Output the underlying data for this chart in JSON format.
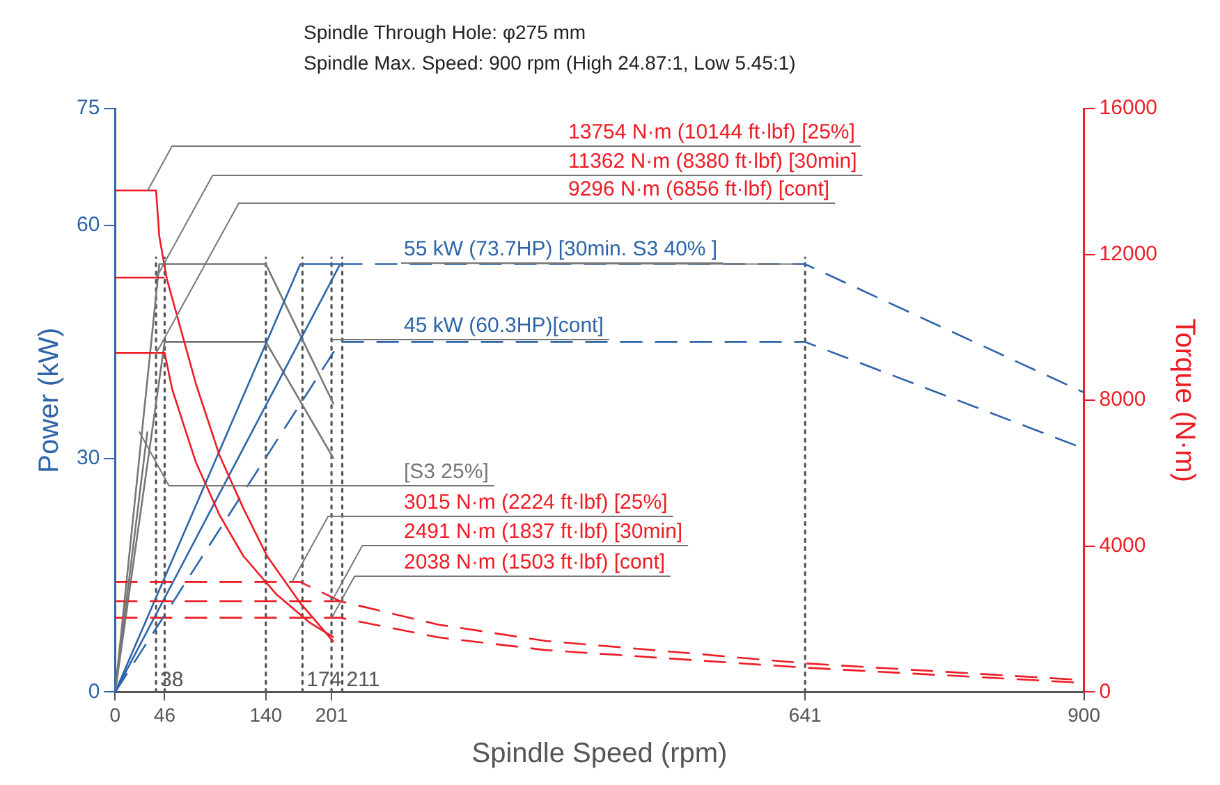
{
  "chart_data": {
    "type": "line",
    "subtitle": "Spindle Through Hole: φ275 mm",
    "annotations": [
      "Spindle Max. Speed: 900 rpm (High 24.87:1, Low 5.45:1)"
    ],
    "xlabel": "Spindle Speed (rpm)",
    "ylabel": "Power (kW)",
    "y2label": "Torque (N·m)",
    "xlim": [
      0,
      900
    ],
    "xticks": [
      0,
      46,
      140,
      201,
      641,
      900
    ],
    "ylim": [
      0,
      75
    ],
    "yticks": [
      0,
      30,
      60,
      75
    ],
    "y2lim": [
      0,
      16000
    ],
    "y2ticks": [
      0,
      4000,
      8000,
      12000,
      16000
    ],
    "grid": false,
    "legend": false,
    "marker": "none",
    "ref_lines": [
      {
        "axis": "x",
        "value": 38,
        "label": "38",
        "line_style": "dotted",
        "color": "#555555"
      },
      {
        "axis": "x",
        "value": 46,
        "label": null,
        "line_style": "dotted",
        "color": "#555555"
      },
      {
        "axis": "x",
        "value": 140,
        "label": null,
        "line_style": "dotted",
        "color": "#555555"
      },
      {
        "axis": "x",
        "value": 174,
        "label": "174",
        "line_style": "dotted",
        "color": "#555555"
      },
      {
        "axis": "x",
        "value": 201,
        "label": null,
        "line_style": "dotted",
        "color": "#555555"
      },
      {
        "axis": "x",
        "value": 211,
        "label": "211",
        "line_style": "dotted",
        "color": "#555555"
      },
      {
        "axis": "x",
        "value": 641,
        "label": null,
        "line_style": "dotted",
        "color": "#555555"
      }
    ],
    "series": [
      {
        "name": "13754 N·m (10144 ft·lbf) [25%]",
        "color": "#ee1c25",
        "axis": "y2",
        "line_style": "solid",
        "x": [
          0,
          38,
          41,
          48,
          75,
          97,
          119,
          141,
          172,
          203
        ],
        "values": [
          13754,
          13754,
          12500,
          11333,
          8452,
          6486,
          5044,
          3734,
          2437,
          1376
        ]
      },
      {
        "name": "11362 N·m (8380 ft·lbf) [30min]",
        "color": "#ee1c25",
        "axis": "y2",
        "line_style": "solid",
        "x": [
          0,
          46
        ],
        "values": [
          11362,
          11362
        ]
      },
      {
        "name": "9296 N·m (6856 ft·lbf) [cont]",
        "color": "#ee1c25",
        "axis": "y2",
        "line_style": "solid",
        "x": [
          0,
          46,
          53,
          75,
          97,
          119,
          150,
          181,
          203
        ],
        "values": [
          9296,
          9296,
          8300,
          6300,
          4850,
          3734,
          2673,
          1899,
          1500
        ]
      },
      {
        "name": "55 kW (73.7HP) [30min. S3 40% ]",
        "color": "#2e64a8",
        "axis": "y",
        "line_style": "dashed",
        "x": [
          209,
          641,
          900
        ],
        "values": [
          55,
          55,
          38.5
        ]
      },
      {
        "name": "45 kW (60.3HP)[cont]",
        "color": "#2e64a8",
        "axis": "y",
        "line_style": "dashed",
        "x": [
          0,
          209,
          641,
          900
        ],
        "values": [
          0,
          45,
          45,
          31.3
        ]
      },
      {
        "name": "[S3 25%]",
        "color": "#777777",
        "axis": "y",
        "line_style": "solid",
        "x": [
          0,
          30
        ],
        "values": [
          0,
          33.5
        ]
      },
      {
        "name": "3015 N·m (2224 ft·lbf) [25%]",
        "color": "#ee1c25",
        "axis": "y2",
        "line_style": "dashed",
        "x": [
          0,
          172,
          209
        ],
        "values": [
          3015,
          3015,
          2491
        ]
      },
      {
        "name": "2491 N·m (1837 ft·lbf) [30min]",
        "color": "#ee1c25",
        "axis": "y2",
        "line_style": "dashed",
        "x": [
          0,
          209,
          300,
          400,
          500,
          641,
          900
        ],
        "values": [
          2491,
          2491,
          1850,
          1400,
          1150,
          786,
          326
        ]
      },
      {
        "name": "2038 N·m (1503 ft·lbf) [cont]",
        "color": "#ee1c25",
        "axis": "y2",
        "line_style": "dashed",
        "x": [
          0,
          209,
          300,
          400,
          500,
          641,
          900
        ],
        "values": [
          2038,
          2038,
          1500,
          1150,
          950,
          668,
          250
        ]
      },
      {
        "color": "#2e64a8",
        "axis": "y",
        "line_style": "solid",
        "x": [
          0,
          172,
          209
        ],
        "values": [
          0,
          55,
          55
        ]
      },
      {
        "color": "#2e64a8",
        "axis": "y",
        "line_style": "solid",
        "x": [
          0,
          209
        ],
        "values": [
          0,
          55
        ]
      },
      {
        "color": "#777777",
        "axis": "y",
        "line_style": "solid",
        "x": [
          0,
          41,
          140,
          203
        ],
        "values": [
          0,
          55,
          55,
          37
        ]
      },
      {
        "color": "#777777",
        "axis": "y",
        "line_style": "solid",
        "x": [
          0,
          46,
          140,
          203
        ],
        "values": [
          0,
          45,
          45,
          30
        ]
      }
    ]
  }
}
